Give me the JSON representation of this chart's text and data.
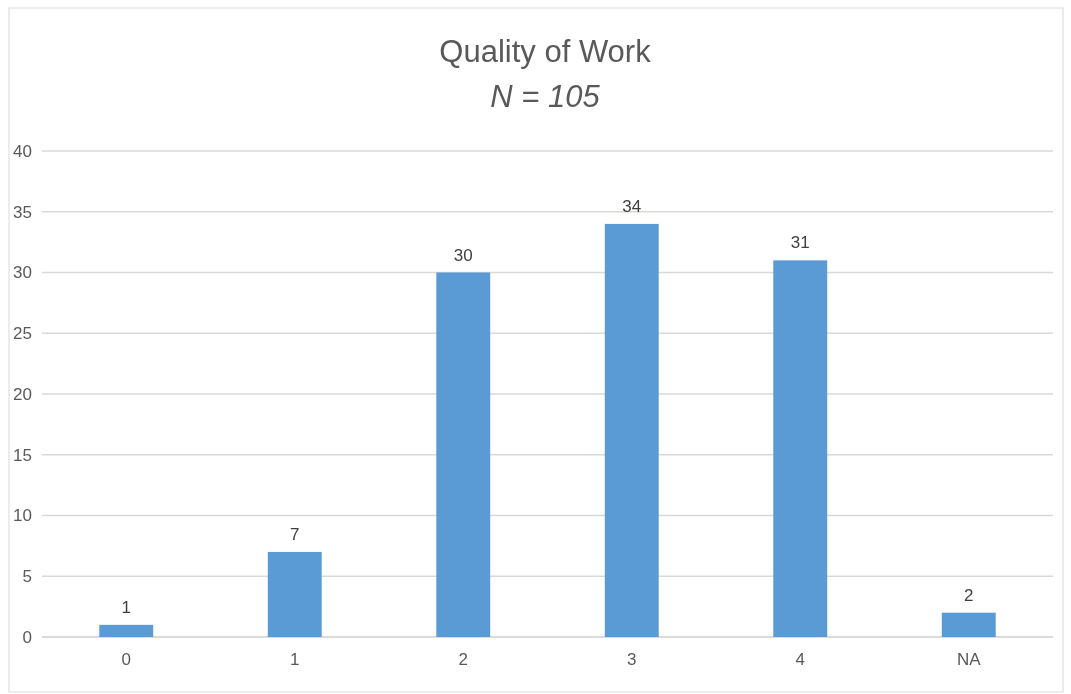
{
  "chart_data": {
    "type": "bar",
    "title": "Quality of Work",
    "subtitle": "N = 105",
    "categories": [
      "0",
      "1",
      "2",
      "3",
      "4",
      "NA"
    ],
    "values": [
      1,
      7,
      30,
      34,
      31,
      2
    ],
    "color": "#5b9bd5",
    "ylim": [
      0,
      40
    ],
    "yticks": [
      0,
      5,
      10,
      15,
      20,
      25,
      30,
      35,
      40
    ],
    "grid": "y",
    "data_labels": true
  }
}
